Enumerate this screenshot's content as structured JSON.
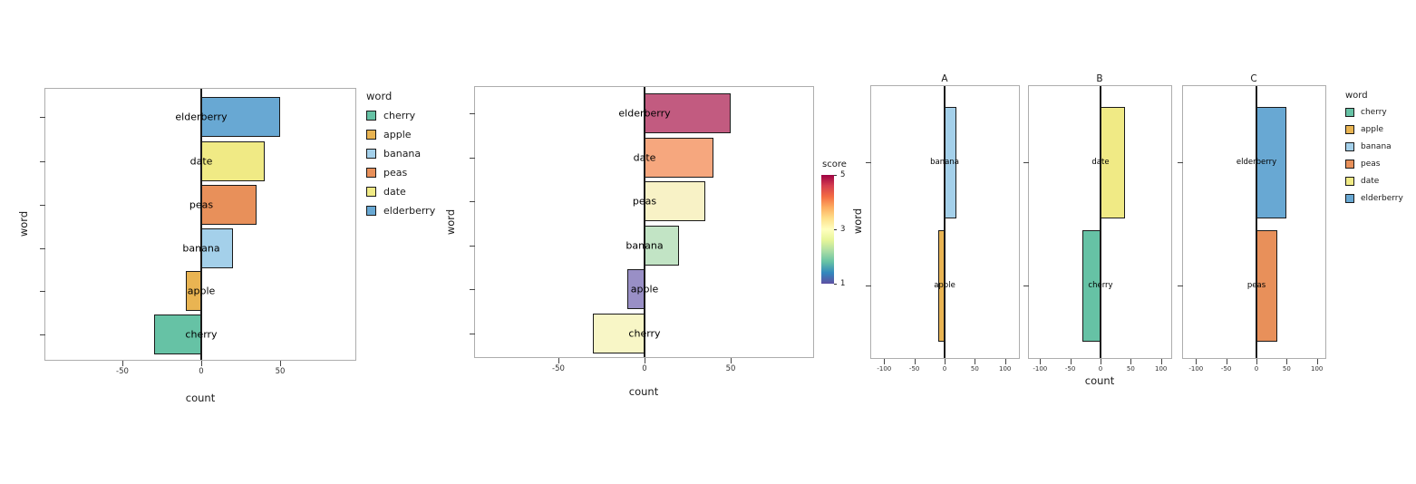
{
  "palette": {
    "cherry": "#66C2A5",
    "apple": "#E9B452",
    "banana": "#A4D0EA",
    "peas": "#E8905A",
    "date": "#F0EA85",
    "elderberry": "#68A8D3"
  },
  "chart_data": [
    {
      "type": "bar",
      "orientation": "horizontal",
      "title": "",
      "xlabel": "count",
      "ylabel": "word",
      "xlim": [
        -100,
        100
      ],
      "x_ticks": [
        -50,
        0,
        50
      ],
      "grid": false,
      "categories": [
        "elderberry",
        "date",
        "peas",
        "banana",
        "apple",
        "cherry"
      ],
      "values": [
        50,
        40,
        35,
        20,
        -10,
        -30
      ],
      "bar_colors": [
        "#68A8D3",
        "#F0EA85",
        "#E8905A",
        "#A4D0EA",
        "#E9B452",
        "#66C2A5"
      ],
      "legend": {
        "title": "word",
        "position": "right",
        "items": [
          "cherry",
          "apple",
          "banana",
          "peas",
          "date",
          "elderberry"
        ]
      }
    },
    {
      "type": "bar",
      "orientation": "horizontal",
      "title": "",
      "xlabel": "count",
      "ylabel": "word",
      "xlim": [
        -100,
        100
      ],
      "x_ticks": [
        -50,
        0,
        50
      ],
      "grid": false,
      "categories": [
        "elderberry",
        "date",
        "peas",
        "banana",
        "apple",
        "cherry"
      ],
      "values": [
        50,
        40,
        35,
        20,
        -10,
        -30
      ],
      "scores": [
        5,
        4,
        3,
        2,
        1,
        3
      ],
      "bar_colors": [
        "#C25B80",
        "#F6A77E",
        "#F8F2C6",
        "#C2E4C5",
        "#998FC6",
        "#F8F6C6"
      ],
      "colorbar": {
        "title": "score",
        "range": [
          1,
          5
        ],
        "ticks": [
          5,
          3,
          1
        ],
        "gradient": [
          "#9E0142",
          "#D53E4F",
          "#F46D43",
          "#FDAE61",
          "#FEE08B",
          "#FFFFBF",
          "#E6F598",
          "#ABDDA4",
          "#66C2A5",
          "#3288BD",
          "#5E4FA2"
        ]
      }
    },
    {
      "type": "bar",
      "orientation": "horizontal",
      "title": "",
      "xlabel": "count",
      "ylabel": "word",
      "xlim": [
        -125,
        125
      ],
      "x_ticks": [
        -100,
        -50,
        0,
        50,
        100
      ],
      "grid": false,
      "facets": [
        {
          "title": "A",
          "categories": [
            "banana",
            "apple"
          ],
          "values": [
            20,
            -10
          ],
          "bar_colors": [
            "#A4D0EA",
            "#E9B452"
          ]
        },
        {
          "title": "B",
          "categories": [
            "date",
            "cherry"
          ],
          "values": [
            40,
            -30
          ],
          "bar_colors": [
            "#F0EA85",
            "#66C2A5"
          ]
        },
        {
          "title": "C",
          "categories": [
            "elderberry",
            "peas"
          ],
          "values": [
            50,
            35
          ],
          "bar_colors": [
            "#68A8D3",
            "#E8905A"
          ]
        }
      ],
      "legend": {
        "title": "word",
        "position": "right",
        "items": [
          "cherry",
          "apple",
          "banana",
          "peas",
          "date",
          "elderberry"
        ]
      }
    }
  ]
}
